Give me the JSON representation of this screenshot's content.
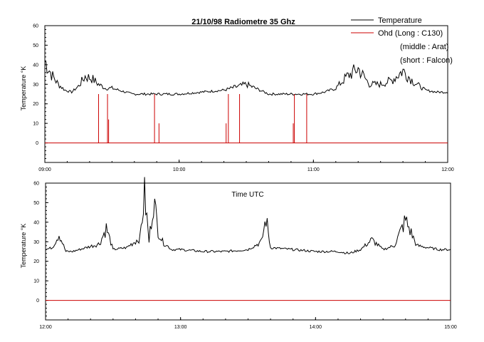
{
  "title": "21/10/98 Radiometre 35 Ghz",
  "middle_label": "Time UTC",
  "legend": {
    "entries": [
      {
        "label": "Temperature",
        "color": "#000000"
      },
      {
        "label": "Ohd (Long : C130)",
        "color": "#cc0000"
      }
    ],
    "extra_lines": [
      "(middle : Arat)",
      "(short : Falcon)"
    ],
    "placement": "top-right"
  },
  "colors": {
    "temperature": "#000000",
    "overhead": "#cc0000"
  },
  "chart_data": [
    {
      "type": "line",
      "ylabel": "Temperature °K",
      "xlabel": "",
      "ylim": [
        -10,
        60
      ],
      "y_ticks": [
        "0",
        "10",
        "20",
        "30",
        "40",
        "50",
        "60"
      ],
      "xlim": [
        "09:00",
        "12:00"
      ],
      "x_ticks": [
        "09:00",
        "10:00",
        "11:00",
        "12:00"
      ],
      "grid": false,
      "series": [
        {
          "name": "Temperature",
          "x": [
            "09:00",
            "09:03",
            "09:06",
            "09:09",
            "09:12",
            "09:15",
            "09:18",
            "09:21",
            "09:24",
            "09:27",
            "09:30",
            "09:33",
            "09:36",
            "09:39",
            "09:42",
            "09:45",
            "09:48",
            "09:51",
            "09:54",
            "09:57",
            "10:00",
            "10:10",
            "10:20",
            "10:30",
            "10:40",
            "10:50",
            "11:00",
            "11:05",
            "11:10",
            "11:15",
            "11:20",
            "11:25",
            "11:30",
            "11:35",
            "11:40",
            "11:45",
            "11:50",
            "11:55",
            "12:00"
          ],
          "values": [
            42,
            35,
            30,
            27,
            26,
            29,
            34,
            33,
            30,
            28,
            28,
            27,
            26,
            25,
            25,
            25,
            25,
            25,
            25,
            25,
            25,
            26,
            27,
            30,
            25,
            25,
            25,
            26,
            28,
            34,
            38,
            30,
            30,
            32,
            37,
            31,
            27,
            26,
            26
          ]
        },
        {
          "name": "Ohd (Long : C130)",
          "baseline": 0,
          "events": [
            {
              "time": "09:24",
              "value": 25
            },
            {
              "time": "09:28",
              "value": 25
            },
            {
              "time": "09:28.5",
              "value": 12
            },
            {
              "time": "09:49",
              "value": 25
            },
            {
              "time": "09:51",
              "value": 10
            },
            {
              "time": "10:21",
              "value": 10
            },
            {
              "time": "10:22",
              "value": 25
            },
            {
              "time": "10:27",
              "value": 25
            },
            {
              "time": "10:51",
              "value": 10
            },
            {
              "time": "10:51.5",
              "value": 25
            },
            {
              "time": "10:57",
              "value": 25
            }
          ]
        }
      ]
    },
    {
      "type": "line",
      "ylabel": "Temperature °K",
      "xlabel": "",
      "ylim": [
        -10,
        60
      ],
      "y_ticks": [
        "0",
        "10",
        "20",
        "30",
        "40",
        "50",
        "60"
      ],
      "xlim": [
        "12:00",
        "15:00"
      ],
      "x_ticks": [
        "12:00",
        "13:00",
        "14:00",
        "15:00"
      ],
      "grid": false,
      "series": [
        {
          "name": "Temperature",
          "x": [
            "12:00",
            "12:03",
            "12:06",
            "12:09",
            "12:12",
            "12:18",
            "12:24",
            "12:27",
            "12:30",
            "12:36",
            "12:42",
            "12:44",
            "12:46",
            "12:48",
            "12:50",
            "12:52",
            "12:54",
            "12:56",
            "13:00",
            "13:10",
            "13:20",
            "13:30",
            "13:36",
            "13:38",
            "13:40",
            "13:50",
            "14:00",
            "14:10",
            "14:15",
            "14:20",
            "14:25",
            "14:30",
            "14:35",
            "14:40",
            "14:45",
            "14:50",
            "14:55",
            "15:00"
          ],
          "values": [
            26,
            27,
            34,
            25,
            25,
            27,
            29,
            37,
            26,
            27,
            32,
            54,
            30,
            52,
            36,
            30,
            28,
            26,
            26,
            25,
            25,
            26,
            30,
            42,
            27,
            26,
            25,
            25,
            24,
            26,
            31,
            26,
            28,
            41,
            28,
            27,
            26,
            26
          ]
        },
        {
          "name": "Ohd (Long : C130)",
          "baseline": 0,
          "events": []
        }
      ]
    }
  ]
}
